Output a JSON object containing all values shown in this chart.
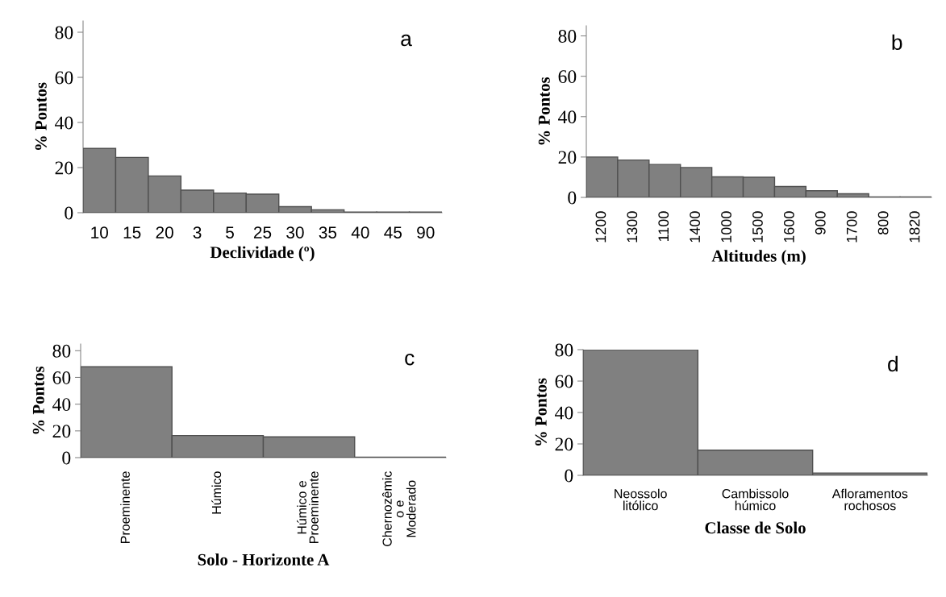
{
  "chart_data": [
    {
      "type": "bar",
      "categories": [
        "10",
        "15",
        "20",
        "3",
        "5",
        "25",
        "30",
        "35",
        "40",
        "45",
        "90"
      ],
      "values": [
        28.5,
        24.5,
        16.3,
        10,
        8.7,
        8.2,
        2.7,
        1.3,
        0.3,
        0.3,
        0.3
      ],
      "color": "#808080",
      "xlabel": "Declividade (º)",
      "ylabel": "% Pontos",
      "ylim": [
        0,
        85
      ],
      "yticks": [
        0,
        20,
        40,
        60,
        80
      ],
      "annotations": [
        "a"
      ],
      "grid": false,
      "legend": false
    },
    {
      "type": "bar",
      "categories": [
        "1200",
        "1300",
        "1100",
        "1400",
        "1000",
        "1500",
        "1600",
        "900",
        "1700",
        "800",
        "1820"
      ],
      "values": [
        20,
        18.5,
        16.3,
        14.8,
        10.2,
        10,
        5.4,
        3.3,
        1.8,
        0.2,
        0.2
      ],
      "color": "#808080",
      "xlabel": "Altitudes (m)",
      "ylabel": "% Pontos",
      "ylim": [
        0,
        85
      ],
      "yticks": [
        0,
        20,
        40,
        60,
        80
      ],
      "annotations": [
        "b"
      ],
      "grid": false,
      "legend": false
    },
    {
      "type": "bar",
      "categories": [
        "Proeminente",
        "Húmico",
        "Húmico e\nProeminente",
        "Chernozêmic\no e\nModerado"
      ],
      "values": [
        68,
        16.5,
        15.5,
        0.3
      ],
      "color": "#808080",
      "xlabel": "Solo - Horizonte A",
      "ylabel": "% Pontos",
      "ylim": [
        0,
        85
      ],
      "yticks": [
        0,
        20,
        40,
        60,
        80
      ],
      "annotations": [
        "c"
      ],
      "grid": false,
      "legend": false
    },
    {
      "type": "bar",
      "categories": [
        "Neossolo\nlitólico",
        "Cambissolo\nhúmico",
        "Afloramentos\nrochosos"
      ],
      "values": [
        80,
        16,
        1.5
      ],
      "color": "#808080",
      "xlabel": "Classe de Solo",
      "ylabel": "% Pontos",
      "ylim": [
        0,
        80
      ],
      "yticks": [
        0,
        20,
        40,
        60,
        80
      ],
      "annotations": [
        "d"
      ],
      "grid": false,
      "legend": false
    }
  ]
}
